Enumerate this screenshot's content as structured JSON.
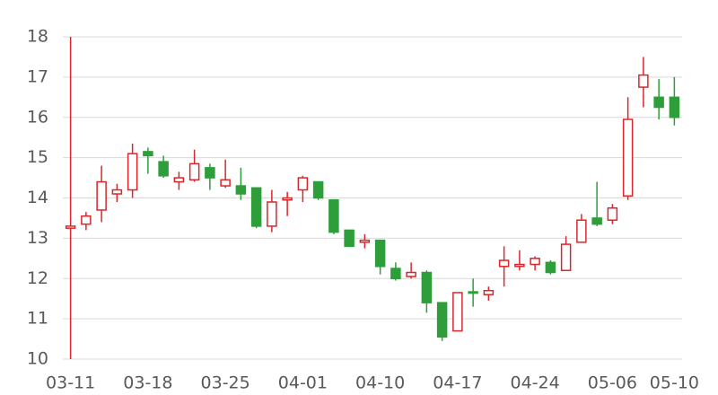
{
  "chart_data": {
    "type": "candlestick",
    "categories": [
      "03-11",
      null,
      null,
      null,
      null,
      "03-18",
      null,
      null,
      null,
      null,
      "03-25",
      null,
      null,
      null,
      null,
      "04-01",
      null,
      null,
      null,
      null,
      "04-10",
      null,
      null,
      null,
      null,
      "04-17",
      null,
      null,
      null,
      null,
      "04-24",
      null,
      null,
      null,
      null,
      "05-06",
      null,
      null,
      null,
      "05-10"
    ],
    "open": [
      13.25,
      13.35,
      13.7,
      14.1,
      14.2,
      15.15,
      14.9,
      14.4,
      14.45,
      14.75,
      14.3,
      14.3,
      14.25,
      13.3,
      13.95,
      14.2,
      14.4,
      13.95,
      13.2,
      12.9,
      12.95,
      12.25,
      12.05,
      12.15,
      11.4,
      10.7,
      11.67,
      11.6,
      12.3,
      12.3,
      12.35,
      12.4,
      12.2,
      12.9,
      13.5,
      13.45,
      14.05,
      16.75,
      16.5,
      16.5
    ],
    "high": [
      18,
      13.65,
      14.8,
      14.35,
      15.35,
      15.25,
      15.05,
      14.65,
      15.2,
      14.85,
      14.95,
      14.75,
      14.25,
      14.2,
      14.15,
      14.55,
      14.4,
      13.95,
      13.2,
      13.1,
      12.95,
      12.4,
      12.4,
      12.2,
      11.4,
      11.65,
      12.0,
      11.8,
      12.8,
      12.7,
      12.55,
      12.45,
      13.05,
      13.6,
      14.4,
      13.85,
      16.5,
      17.5,
      16.95,
      17.0
    ],
    "low": [
      10,
      13.2,
      13.4,
      13.9,
      14.0,
      14.6,
      14.5,
      14.2,
      14.4,
      14.2,
      14.25,
      13.95,
      13.25,
      13.15,
      13.55,
      13.9,
      13.95,
      13.1,
      12.8,
      12.75,
      12.1,
      11.95,
      12.0,
      11.15,
      10.45,
      10.7,
      11.3,
      11.45,
      11.8,
      12.2,
      12.2,
      12.1,
      12.2,
      12.9,
      13.3,
      13.35,
      13.95,
      16.25,
      15.95,
      15.8
    ],
    "close": [
      13.3,
      13.55,
      14.4,
      14.2,
      15.1,
      15.05,
      14.55,
      14.5,
      14.85,
      14.5,
      14.45,
      14.1,
      13.3,
      13.9,
      14.0,
      14.5,
      14.0,
      13.15,
      12.8,
      12.95,
      12.3,
      12.0,
      12.15,
      11.4,
      10.55,
      11.65,
      11.65,
      11.7,
      12.45,
      12.35,
      12.5,
      12.15,
      12.85,
      13.45,
      13.35,
      13.75,
      15.95,
      17.05,
      16.25,
      16.0
    ],
    "up_color": "#d9262b",
    "down_color": "#2e9e3a",
    "ylim": [
      10,
      18
    ],
    "yticks": [
      10,
      11,
      12,
      13,
      14,
      15,
      16,
      17,
      18
    ],
    "grid": true
  }
}
